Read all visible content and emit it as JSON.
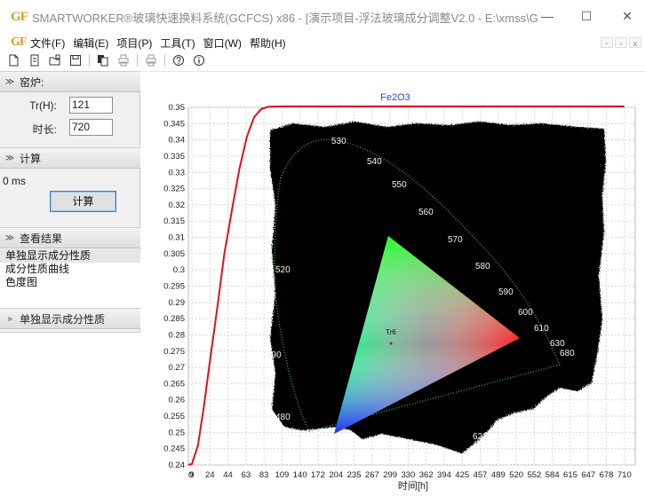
{
  "titlebar": {
    "logo": "GF",
    "title": "SMARTWORKER®玻璃快速换料系统(GCFCS) x86 - [演示项目-浮法玻璃成分调整V2.0 - E:\\xmss\\G...",
    "minimize": "—",
    "maximize": "☐",
    "close": "✕"
  },
  "menubar": {
    "logo": "GF",
    "items": [
      "文件(F)",
      "编辑(E)",
      "项目(P)",
      "工具(T)",
      "窗口(W)",
      "帮助(H)"
    ],
    "mdi_minimize": "-",
    "mdi_restore": "▫",
    "mdi_close": "x"
  },
  "toolbar": {
    "icons": [
      "new-file-icon",
      "open-file-icon",
      "open-folder-icon",
      "save-icon",
      "copy-icon",
      "print-preview-icon",
      "print-icon",
      "help-icon",
      "info-icon"
    ]
  },
  "left_panel": {
    "kiln_section": {
      "title": "窑炉:",
      "chevron": "≫"
    },
    "tr_label": "Tr(H):",
    "tr_value": "121",
    "duration_label": "时长:",
    "duration_value": "720",
    "calc_section": {
      "title": "计算",
      "chevron": "≫"
    },
    "status_text": "0 ms",
    "calc_button": "计算",
    "results_section": {
      "title": "查看结果",
      "chevron": "≫"
    },
    "results": [
      "单独显示成分性质",
      "成分性质曲线",
      "色度图"
    ],
    "bottom_section": {
      "title": "单独显示成分性质",
      "chevron": "»"
    }
  },
  "chart_data": {
    "type": "line",
    "title": "Fe2O3",
    "xlabel": "时间[h]",
    "ylabel": "",
    "x_tick_labels": [
      "0",
      "9",
      "24",
      "44",
      "63",
      "83",
      "109",
      "140",
      "172",
      "204",
      "235",
      "267",
      "299",
      "330",
      "362",
      "394",
      "425",
      "457",
      "489",
      "520",
      "552",
      "584",
      "615",
      "647",
      "678",
      "710"
    ],
    "y_tick_labels": [
      "0.35",
      "0.345",
      "0.34",
      "0.335",
      "0.33",
      "0.325",
      "0.32",
      "0.315",
      "0.31",
      "0.305",
      "0.3",
      "0.295",
      "0.29",
      "0.285",
      "0.28",
      "0.275",
      "0.27",
      "0.265",
      "0.26",
      "0.255",
      "0.25",
      "0.245",
      "0.24"
    ],
    "ylim": [
      0.24,
      0.35
    ],
    "grid": true,
    "series": [
      {
        "color": "#e0101a",
        "points": [
          [
            0,
            0.24
          ],
          [
            9,
            0.2403
          ],
          [
            14,
            0.246
          ],
          [
            19,
            0.258
          ],
          [
            24,
            0.272
          ],
          [
            32,
            0.288
          ],
          [
            40,
            0.305
          ],
          [
            48,
            0.318
          ],
          [
            56,
            0.331
          ],
          [
            64,
            0.341
          ],
          [
            72,
            0.347
          ],
          [
            80,
            0.3495
          ],
          [
            90,
            0.3502
          ],
          [
            110,
            0.3503
          ],
          [
            710,
            0.3503
          ]
        ]
      }
    ],
    "overlay": {
      "type": "cie-chromaticity",
      "wavelength_labels": [
        "480",
        "490",
        "520",
        "530",
        "540",
        "550",
        "560",
        "570",
        "580",
        "590",
        "600",
        "610",
        "620",
        "630",
        "680"
      ],
      "locus_color": "#39a33b",
      "marker_label": "Tr6"
    }
  }
}
